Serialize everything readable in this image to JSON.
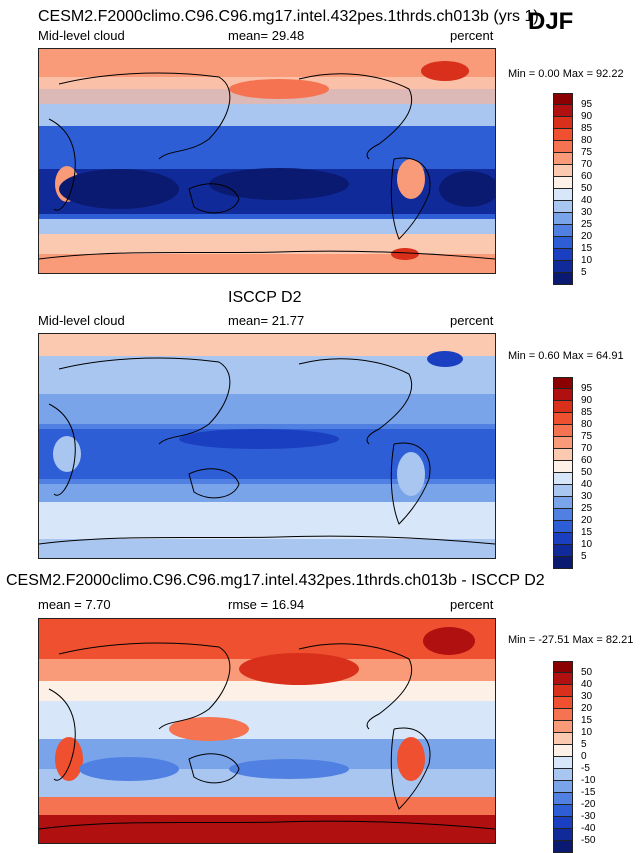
{
  "season": "DJF",
  "chart_data": [
    {
      "type": "heatmap",
      "title": "CESM2.F2000climo.C96.C96.mg17.intel.432pes.1thrds.ch013b (yrs 1)",
      "left_label": "Mid-level cloud",
      "center_label": "mean=  29.48",
      "units": "percent",
      "min_max": "Min =   0.00 Max =  92.22",
      "mean": 29.48,
      "min": 0.0,
      "max": 92.22,
      "levels": [
        "95",
        "90",
        "85",
        "80",
        "75",
        "70",
        "60",
        "50",
        "40",
        "30",
        "25",
        "20",
        "15",
        "10",
        "5"
      ],
      "colors": {
        "c95": "#8b0000",
        "c90": "#b01010",
        "c85": "#d8301a",
        "c80": "#ee5030",
        "c75": "#f57350",
        "c70": "#f99a78",
        "c60": "#fbc8b0",
        "c50": "#fdf0e6",
        "c40": "#d7e6f8",
        "c30": "#a8c6f0",
        "c25": "#7aa4ea",
        "c20": "#4f80e2",
        "c15": "#2d5ed6",
        "c10": "#1a3fc0",
        "c5": "#102a9a",
        "c0": "#0a1a70"
      }
    },
    {
      "type": "heatmap",
      "title": "ISCCP D2",
      "left_label": "Mid-level cloud",
      "center_label": "mean=  21.77",
      "units": "percent",
      "min_max": "Min =   0.60 Max =  64.91",
      "mean": 21.77,
      "min": 0.6,
      "max": 64.91,
      "levels": [
        "95",
        "90",
        "85",
        "80",
        "75",
        "70",
        "60",
        "50",
        "40",
        "30",
        "25",
        "20",
        "15",
        "10",
        "5"
      ]
    },
    {
      "type": "heatmap",
      "title": "CESM2.F2000climo.C96.C96.mg17.intel.432pes.1thrds.ch013b - ISCCP D2",
      "left_label": "mean =   7.70",
      "center_label": "rmse =  16.94",
      "units": "percent",
      "min_max": "Min = -27.51 Max =  82.21",
      "mean": 7.7,
      "rmse": 16.94,
      "min": -27.51,
      "max": 82.21,
      "levels": [
        "50",
        "40",
        "30",
        "20",
        "15",
        "10",
        "5",
        "0",
        "-5",
        "-10",
        "-15",
        "-20",
        "-30",
        "-40",
        "-50"
      ]
    }
  ]
}
